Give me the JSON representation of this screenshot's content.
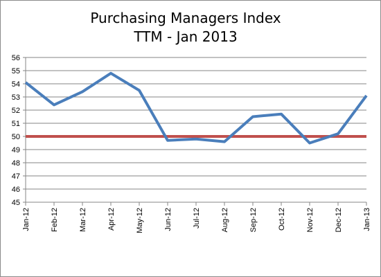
{
  "chart_data": {
    "type": "line",
    "title": "Purchasing Managers Index",
    "subtitle": "TTM - Jan 2013",
    "xlabel": "",
    "ylabel": "",
    "categories": [
      "Jan-12",
      "Feb-12",
      "Mar-12",
      "Apr-12",
      "May-12",
      "Jun-12",
      "Jul-12",
      "Aug-12",
      "Sep-12",
      "Oct-12",
      "Nov-12",
      "Dec-12",
      "Jan-13"
    ],
    "series": [
      {
        "values": [
          54.1,
          52.4,
          53.4,
          54.8,
          53.5,
          49.7,
          49.8,
          49.6,
          51.5,
          51.7,
          49.5,
          50.2,
          53.1
        ],
        "color": "#4a7ebb"
      },
      {
        "values": [
          50,
          50,
          50,
          50,
          50,
          50,
          50,
          50,
          50,
          50,
          50,
          50,
          50
        ],
        "color": "#c0504d"
      }
    ],
    "ylim": [
      45,
      56
    ],
    "yticks": [
      "45",
      "46",
      "47",
      "48",
      "49",
      "50",
      "51",
      "52",
      "53",
      "54",
      "55",
      "56"
    ],
    "grid": true,
    "legend": "none"
  }
}
